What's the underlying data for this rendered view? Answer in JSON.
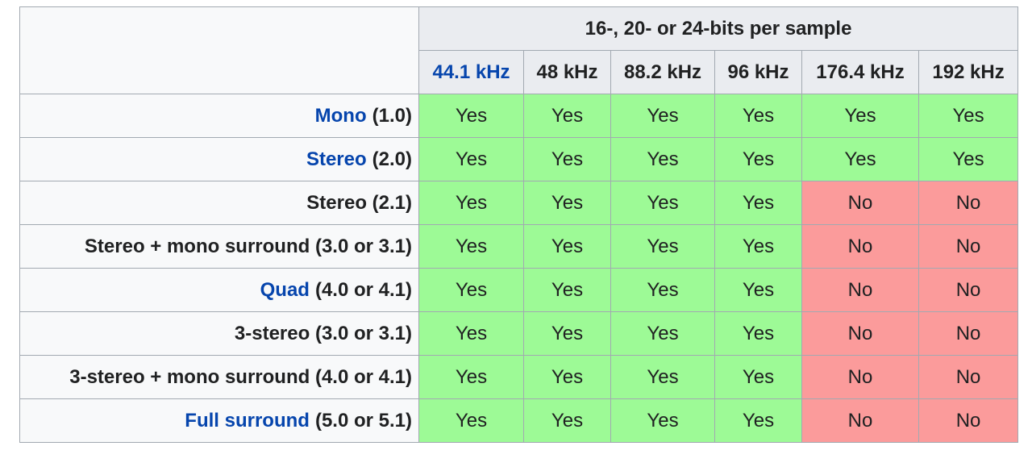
{
  "table": {
    "group_header": "16-, 20- or 24-bits per sample",
    "columns": [
      {
        "text": "44.1 kHz",
        "link": true
      },
      {
        "text": "48 kHz"
      },
      {
        "text": "88.2 kHz"
      },
      {
        "text": "96 kHz"
      },
      {
        "text": "176.4 kHz"
      },
      {
        "text": "192 kHz"
      }
    ],
    "cell_colors": {
      "Yes": "#9dfa96",
      "No": "#fb9b9b"
    },
    "rows": [
      {
        "link": "Mono",
        "text": "(1.0)",
        "cells": [
          "Yes",
          "Yes",
          "Yes",
          "Yes",
          "Yes",
          "Yes"
        ]
      },
      {
        "link": "Stereo",
        "text": "(2.0)",
        "cells": [
          "Yes",
          "Yes",
          "Yes",
          "Yes",
          "Yes",
          "Yes"
        ]
      },
      {
        "text": "Stereo (2.1)",
        "cells": [
          "Yes",
          "Yes",
          "Yes",
          "Yes",
          "No",
          "No"
        ]
      },
      {
        "text": "Stereo + mono surround (3.0 or 3.1)",
        "cells": [
          "Yes",
          "Yes",
          "Yes",
          "Yes",
          "No",
          "No"
        ]
      },
      {
        "link": "Quad",
        "text": "(4.0 or 4.1)",
        "cells": [
          "Yes",
          "Yes",
          "Yes",
          "Yes",
          "No",
          "No"
        ]
      },
      {
        "text": "3-stereo (3.0 or 3.1)",
        "cells": [
          "Yes",
          "Yes",
          "Yes",
          "Yes",
          "No",
          "No"
        ]
      },
      {
        "text": "3-stereo + mono surround (4.0 or 4.1)",
        "cells": [
          "Yes",
          "Yes",
          "Yes",
          "Yes",
          "No",
          "No"
        ]
      },
      {
        "link": "Full surround",
        "text": "(5.0 or 5.1)",
        "cells": [
          "Yes",
          "Yes",
          "Yes",
          "Yes",
          "No",
          "No"
        ]
      }
    ]
  }
}
